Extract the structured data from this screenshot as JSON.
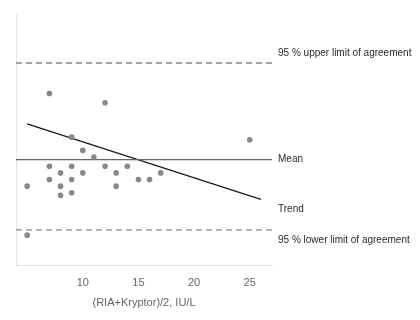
{
  "chart_data": {
    "type": "scatter",
    "xlabel": "(RIA+Kryptor)/2, IU/L",
    "xlim": [
      4,
      27
    ],
    "ylim": [
      -8.5,
      10.5
    ],
    "xticks": [
      10,
      15,
      20,
      25
    ],
    "tick_labels": "x",
    "grid": false,
    "series": [
      {
        "type": "scatter",
        "color": "#888888",
        "marker": "circle",
        "x": [
          5,
          7,
          7,
          8,
          8,
          8,
          9,
          9,
          9,
          9,
          10,
          10,
          11,
          12,
          13,
          13,
          14,
          15,
          16,
          17,
          25
        ],
        "values": [
          -2.5,
          -1.0,
          -2.0,
          -3.2,
          -2.5,
          -1.5,
          1.2,
          -1.0,
          -2.0,
          -3.0,
          -1.5,
          0.2,
          -0.3,
          -1.0,
          -1.5,
          -2.5,
          -1.0,
          -2.0,
          -2.0,
          -1.5,
          1.0
        ]
      },
      {
        "type": "scatter",
        "color": "#888888",
        "marker": "circle",
        "x": [
          7,
          12
        ],
        "values": [
          4.5,
          3.8
        ]
      },
      {
        "type": "scatter",
        "color": "#888888",
        "marker": "circle",
        "x": [
          5
        ],
        "values": [
          -6.2
        ]
      }
    ],
    "lines": [
      {
        "y": 6.8,
        "color": "#888888",
        "line_style": "dashed",
        "label": "95 % upper limit of agreement"
      },
      {
        "y": -5.8,
        "color": "#888888",
        "line_style": "dashed",
        "label": "95 % lower limit of agreement"
      },
      {
        "y": -0.5,
        "color": "#666666",
        "line_style": "solid",
        "label": "Mean"
      },
      {
        "x": [
          5,
          26
        ],
        "values": [
          2.2,
          -3.5
        ],
        "color": "#1a1a1a",
        "line_style": "solid",
        "label": "Trend"
      }
    ]
  }
}
